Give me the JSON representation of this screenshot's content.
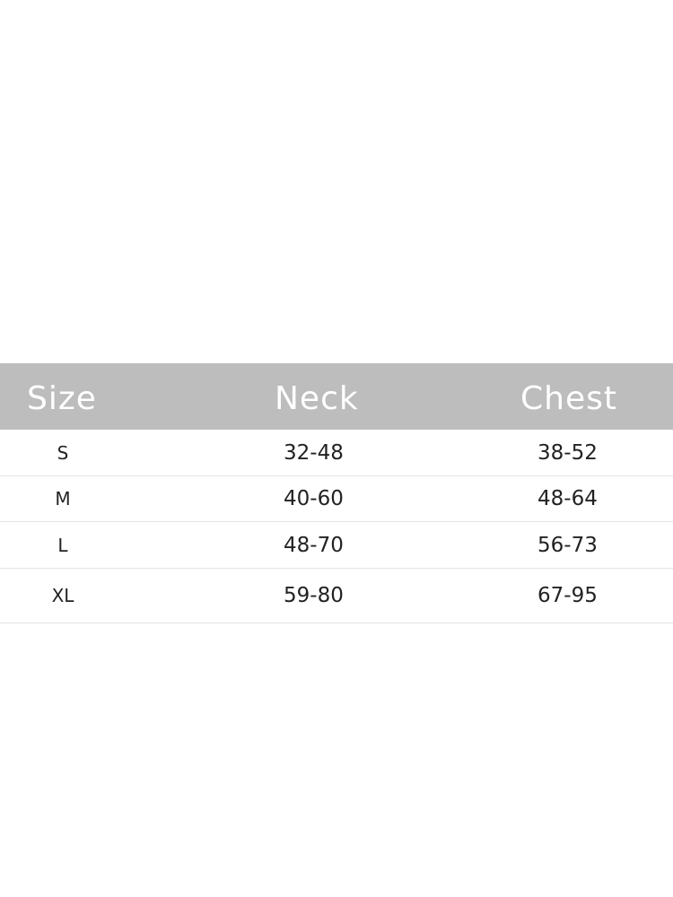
{
  "table": {
    "header": [
      "Size",
      "Neck",
      "Chest"
    ],
    "rows": [
      [
        "S",
        "32-48",
        "38-52"
      ],
      [
        "M",
        "40-60",
        "48-64"
      ],
      [
        "L",
        "48-70",
        "56-73"
      ],
      [
        "XL",
        "59-80",
        "67-95"
      ]
    ]
  }
}
